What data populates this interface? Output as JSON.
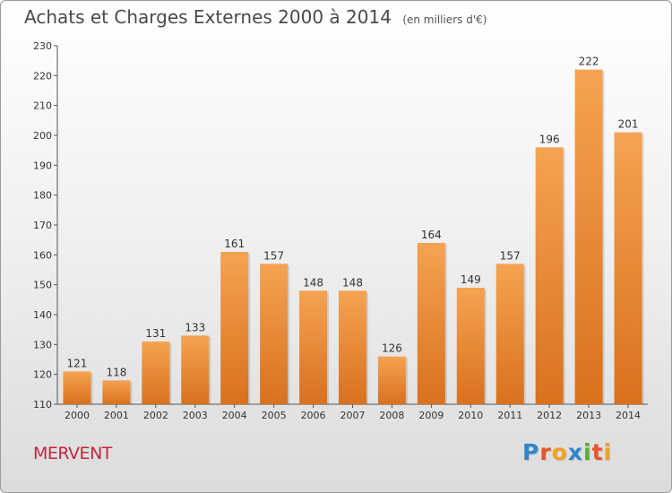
{
  "header": {
    "title": "Achats et Charges Externes 2000 à 2014",
    "subtitle": "(en milliers d'€)"
  },
  "footer": {
    "commune": "MERVENT",
    "logo_text": "Proxiti",
    "logo_colors": [
      "#2f86c9",
      "#e8542b",
      "#f3a020",
      "#2f86c9",
      "#58b030",
      "#e8542b",
      "#f3a020"
    ]
  },
  "chart_data": {
    "type": "bar",
    "title": "Achats et Charges Externes 2000 à 2014",
    "subtitle": "(en milliers d'€)",
    "categories": [
      "2000",
      "2001",
      "2002",
      "2003",
      "2004",
      "2005",
      "2006",
      "2007",
      "2008",
      "2009",
      "2010",
      "2011",
      "2012",
      "2013",
      "2014"
    ],
    "values": [
      121,
      118,
      131,
      133,
      161,
      157,
      148,
      148,
      126,
      164,
      149,
      157,
      196,
      222,
      201
    ],
    "ylim": [
      110,
      230
    ],
    "yticks": [
      110,
      120,
      130,
      140,
      150,
      160,
      170,
      180,
      190,
      200,
      210,
      220,
      230
    ],
    "grid": false,
    "bar_color_light": "#f5a352",
    "bar_color_dark": "#d9711e",
    "data_labels": true
  }
}
